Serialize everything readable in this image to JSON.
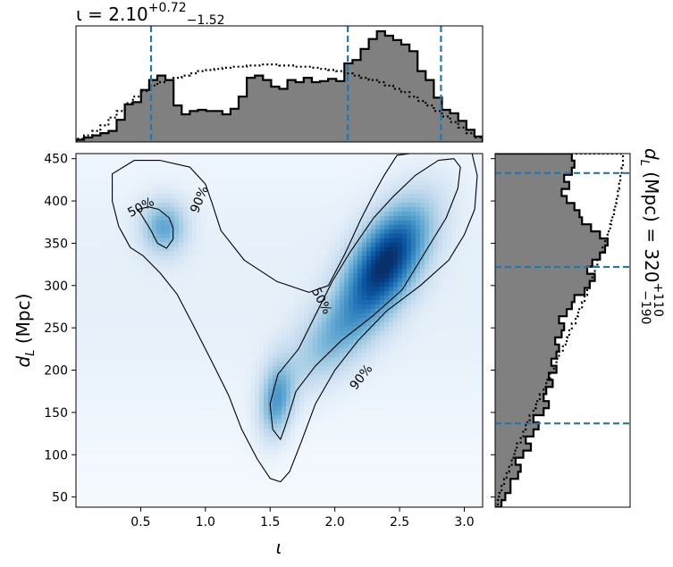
{
  "chart_data": [
    {
      "panel": "joint",
      "type": "heatmap",
      "xlabel": "ι",
      "ylabel": "d_L (Mpc)",
      "xlim": [
        0.0,
        3.14159
      ],
      "ylim": [
        38,
        456
      ],
      "xticks": [
        "0.5",
        "1.0",
        "1.5",
        "2.0",
        "2.5",
        "3.0"
      ],
      "xtick_values": [
        0.5,
        1.0,
        1.5,
        2.0,
        2.5,
        3.0
      ],
      "yticks": [
        "50",
        "100",
        "150",
        "200",
        "250",
        "300",
        "350",
        "400",
        "450"
      ],
      "ytick_values": [
        50,
        100,
        150,
        200,
        250,
        300,
        350,
        400,
        450
      ],
      "colormap": "Blues",
      "density_modes": [
        {
          "x": 2.4,
          "y": 330,
          "weight": 1.0
        },
        {
          "x": 0.68,
          "y": 370,
          "weight": 0.45
        },
        {
          "x": 1.55,
          "y": 165,
          "weight": 0.5
        },
        {
          "x": 2.0,
          "y": 240,
          "weight": 0.35
        }
      ],
      "contours": [
        {
          "label": "50%",
          "paths": [
            [
              [
                0.48,
                390
              ],
              [
                0.52,
                380
              ],
              [
                0.58,
                365
              ],
              [
                0.63,
                350
              ],
              [
                0.7,
                344
              ],
              [
                0.75,
                355
              ],
              [
                0.75,
                368
              ],
              [
                0.72,
                380
              ],
              [
                0.64,
                390
              ],
              [
                0.56,
                393
              ],
              [
                0.48,
                390
              ]
            ],
            [
              [
                1.5,
                160
              ],
              [
                1.52,
                130
              ],
              [
                1.58,
                118
              ],
              [
                1.62,
                135
              ],
              [
                1.7,
                175
              ],
              [
                1.85,
                205
              ],
              [
                2.05,
                235
              ],
              [
                2.3,
                265
              ],
              [
                2.52,
                295
              ],
              [
                2.7,
                340
              ],
              [
                2.86,
                380
              ],
              [
                2.95,
                415
              ],
              [
                2.97,
                440
              ],
              [
                2.92,
                450
              ],
              [
                2.8,
                448
              ],
              [
                2.62,
                430
              ],
              [
                2.45,
                405
              ],
              [
                2.3,
                380
              ],
              [
                2.12,
                340
              ],
              [
                1.98,
                305
              ],
              [
                1.85,
                265
              ],
              [
                1.72,
                225
              ],
              [
                1.56,
                195
              ],
              [
                1.5,
                160
              ]
            ]
          ],
          "labels_at": [
            [
              0.5,
              393
            ],
            [
              1.9,
              282
            ]
          ]
        },
        {
          "label": "90%",
          "paths": [
            [
              [
                0.28,
                432
              ],
              [
                0.45,
                448
              ],
              [
                0.65,
                448
              ],
              [
                0.88,
                440
              ],
              [
                1.0,
                420
              ],
              [
                1.05,
                398
              ],
              [
                1.12,
                365
              ],
              [
                1.3,
                330
              ],
              [
                1.55,
                305
              ],
              [
                1.8,
                292
              ],
              [
                1.95,
                300
              ],
              [
                2.08,
                338
              ],
              [
                2.2,
                378
              ],
              [
                2.3,
                408
              ],
              [
                2.38,
                430
              ],
              [
                2.48,
                454
              ],
              [
                2.58,
                456
              ],
              [
                3.06,
                456
              ],
              [
                3.1,
                430
              ],
              [
                3.08,
                390
              ],
              [
                3.0,
                360
              ],
              [
                2.88,
                330
              ],
              [
                2.66,
                300
              ],
              [
                2.4,
                270
              ],
              [
                2.18,
                235
              ],
              [
                2.0,
                200
              ],
              [
                1.85,
                160
              ],
              [
                1.74,
                115
              ],
              [
                1.65,
                80
              ],
              [
                1.58,
                68
              ],
              [
                1.5,
                72
              ],
              [
                1.4,
                95
              ],
              [
                1.28,
                130
              ],
              [
                1.18,
                170
              ],
              [
                1.05,
                210
              ],
              [
                0.9,
                255
              ],
              [
                0.78,
                290
              ],
              [
                0.65,
                315
              ],
              [
                0.52,
                335
              ],
              [
                0.42,
                345
              ],
              [
                0.33,
                370
              ],
              [
                0.28,
                400
              ],
              [
                0.28,
                432
              ]
            ]
          ],
          "labels_at": [
            [
              0.95,
              402
            ],
            [
              2.2,
              192
            ]
          ]
        }
      ]
    },
    {
      "panel": "top_marginal",
      "type": "histogram",
      "title": "ι = 2.10",
      "title_sup": "+0.72",
      "title_sub": "−1.52",
      "xlim": [
        0.0,
        3.14159
      ],
      "bin_edges": [
        0.0,
        0.0628,
        0.1257,
        0.1885,
        0.2513,
        0.3142,
        0.377,
        0.4398,
        0.5027,
        0.5655,
        0.6283,
        0.6912,
        0.754,
        0.8168,
        0.8796,
        0.9425,
        1.0053,
        1.0681,
        1.131,
        1.1938,
        1.2566,
        1.3195,
        1.3823,
        1.4451,
        1.508,
        1.5708,
        1.6336,
        1.6965,
        1.7593,
        1.8221,
        1.885,
        1.9478,
        2.0106,
        2.0735,
        2.1363,
        2.1991,
        2.262,
        2.3248,
        2.3876,
        2.4504,
        2.5133,
        2.5761,
        2.6389,
        2.7018,
        2.7646,
        2.8274,
        2.8903,
        2.9531,
        3.0159,
        3.0788,
        3.1416
      ],
      "counts": [
        0.02,
        0.04,
        0.06,
        0.08,
        0.1,
        0.2,
        0.34,
        0.36,
        0.47,
        0.56,
        0.6,
        0.56,
        0.33,
        0.25,
        0.28,
        0.29,
        0.28,
        0.28,
        0.25,
        0.3,
        0.41,
        0.58,
        0.6,
        0.56,
        0.5,
        0.48,
        0.56,
        0.54,
        0.58,
        0.54,
        0.55,
        0.57,
        0.55,
        0.71,
        0.74,
        0.84,
        0.93,
        1.0,
        0.96,
        0.92,
        0.88,
        0.82,
        0.64,
        0.56,
        0.4,
        0.29,
        0.26,
        0.19,
        0.11,
        0.05
      ],
      "prior_counts": [
        0.03,
        0.06,
        0.1,
        0.15,
        0.22,
        0.28,
        0.35,
        0.41,
        0.46,
        0.51,
        0.54,
        0.56,
        0.58,
        0.6,
        0.62,
        0.64,
        0.65,
        0.66,
        0.67,
        0.68,
        0.68,
        0.69,
        0.69,
        0.7,
        0.7,
        0.69,
        0.69,
        0.68,
        0.68,
        0.67,
        0.66,
        0.65,
        0.64,
        0.62,
        0.6,
        0.58,
        0.56,
        0.54,
        0.51,
        0.48,
        0.45,
        0.41,
        0.37,
        0.33,
        0.28,
        0.23,
        0.18,
        0.13,
        0.08,
        0.04
      ],
      "quantile_lines": [
        0.58,
        2.1,
        2.82
      ],
      "fill_color": "#808080",
      "line_color": "#1f77b4"
    },
    {
      "panel": "right_marginal",
      "type": "histogram",
      "title": "d_L (Mpc) = 320",
      "title_sup": "+110",
      "title_sub": "−190",
      "orientation": "horizontal",
      "ylim": [
        38,
        456
      ],
      "bin_edges": [
        38,
        46.36,
        54.72,
        63.08,
        71.44,
        79.8,
        88.16,
        96.52,
        104.88,
        113.24,
        121.6,
        129.96,
        138.32,
        146.68,
        155.04,
        163.4,
        171.76,
        180.12,
        188.48,
        196.84,
        205.2,
        213.56,
        221.92,
        230.28,
        238.64,
        247,
        255.36,
        263.72,
        272.08,
        280.44,
        288.8,
        297.16,
        305.52,
        313.88,
        322.24,
        330.6,
        338.96,
        347.32,
        355.68,
        364.04,
        372.4,
        380.76,
        389.12,
        397.48,
        405.84,
        414.2,
        422.56,
        430.92,
        439.28,
        447.64,
        456
      ],
      "counts": [
        0.05,
        0.08,
        0.12,
        0.12,
        0.18,
        0.2,
        0.16,
        0.22,
        0.28,
        0.24,
        0.3,
        0.34,
        0.3,
        0.38,
        0.42,
        0.38,
        0.4,
        0.45,
        0.42,
        0.48,
        0.44,
        0.48,
        0.5,
        0.47,
        0.52,
        0.54,
        0.5,
        0.56,
        0.6,
        0.62,
        0.7,
        0.74,
        0.78,
        0.72,
        0.76,
        0.82,
        0.86,
        0.88,
        0.82,
        0.75,
        0.68,
        0.66,
        0.62,
        0.56,
        0.52,
        0.58,
        0.54,
        0.6,
        0.62,
        0.6
      ],
      "prior_counts": [
        0.02,
        0.03,
        0.05,
        0.07,
        0.09,
        0.11,
        0.13,
        0.15,
        0.17,
        0.2,
        0.22,
        0.24,
        0.27,
        0.3,
        0.32,
        0.35,
        0.38,
        0.4,
        0.43,
        0.46,
        0.48,
        0.5,
        0.53,
        0.56,
        0.58,
        0.6,
        0.63,
        0.65,
        0.68,
        0.7,
        0.72,
        0.74,
        0.76,
        0.78,
        0.8,
        0.82,
        0.84,
        0.86,
        0.88,
        0.9,
        0.91,
        0.93,
        0.94,
        0.95,
        0.96,
        0.97,
        0.98,
        0.99,
        1.0,
        1.0
      ],
      "quantile_lines": [
        137,
        322,
        433
      ],
      "fill_color": "#808080",
      "line_color": "#1f77b4"
    }
  ]
}
